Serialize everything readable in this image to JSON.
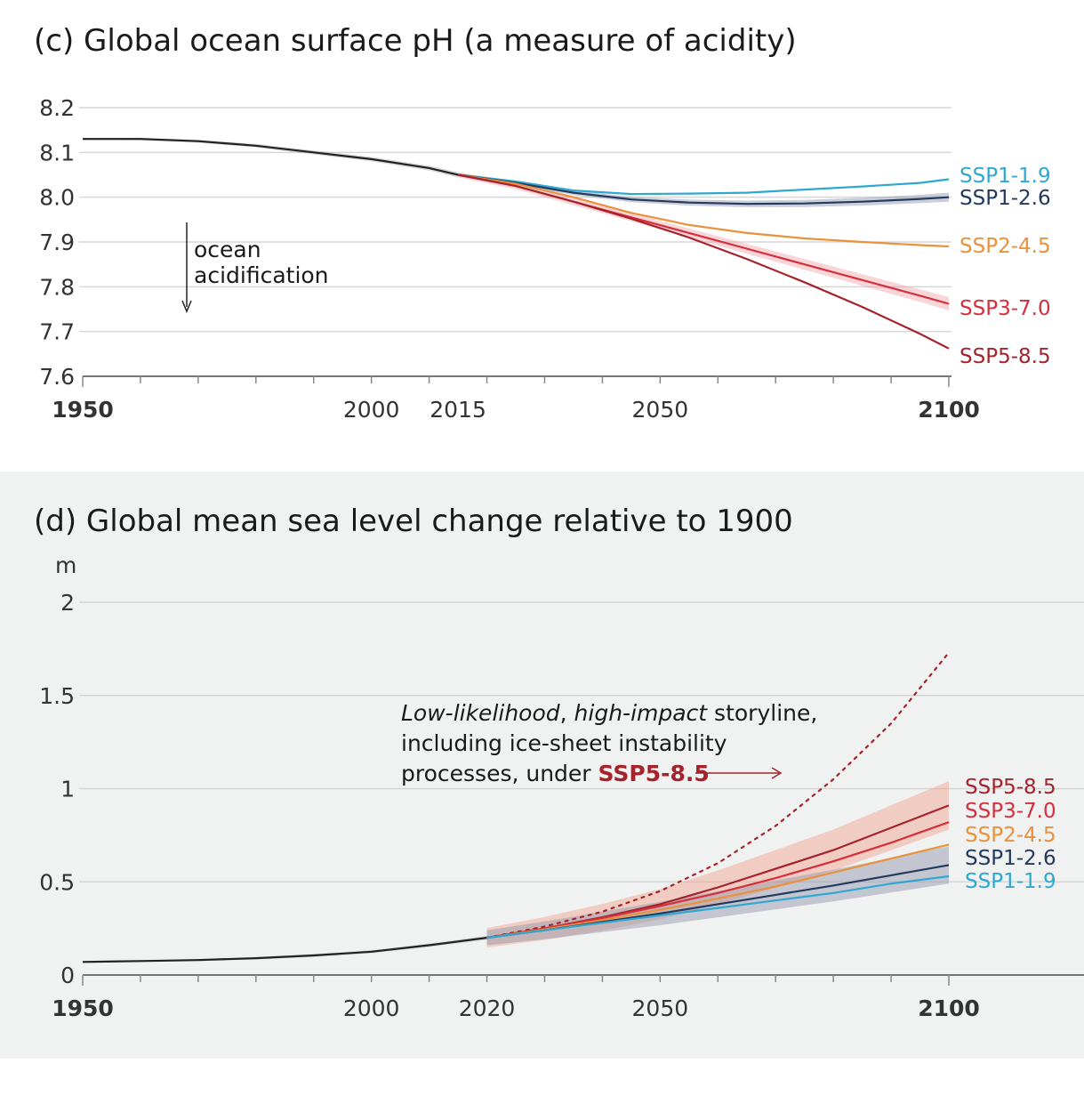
{
  "chart_data": [
    {
      "type": "line",
      "title": "(c) Global ocean surface pH (a measure of acidity)",
      "ylim": [
        7.6,
        8.2
      ],
      "yticks": [
        "8.2",
        "8.1",
        "8.0",
        "7.9",
        "7.8",
        "7.7",
        "7.6"
      ],
      "xlim": [
        1950,
        2100
      ],
      "xticks": [
        "1950",
        "2000",
        "2015",
        "2050",
        "2100"
      ],
      "grid": true,
      "annotation": {
        "line1": "ocean",
        "line2": "acidification"
      },
      "historical": {
        "name": "",
        "color": "#222222",
        "x": [
          1950,
          1960,
          1970,
          1980,
          1990,
          2000,
          2010,
          2015
        ],
        "y": [
          8.13,
          8.13,
          8.125,
          8.115,
          8.1,
          8.085,
          8.065,
          8.05
        ],
        "band": 0.006
      },
      "series": [
        {
          "name": "SSP1-1.9",
          "color": "#2fa8d1",
          "x": [
            2015,
            2025,
            2035,
            2045,
            2055,
            2065,
            2075,
            2085,
            2095,
            2100
          ],
          "y": [
            8.05,
            8.035,
            8.015,
            8.007,
            8.008,
            8.01,
            8.017,
            8.024,
            8.032,
            8.04
          ],
          "band": 0
        },
        {
          "name": "SSP1-2.6",
          "color": "#23395d",
          "x": [
            2015,
            2025,
            2035,
            2045,
            2055,
            2065,
            2075,
            2085,
            2095,
            2100
          ],
          "y": [
            8.05,
            8.032,
            8.01,
            7.995,
            7.988,
            7.985,
            7.986,
            7.99,
            7.996,
            8.0
          ],
          "band": 0.01
        },
        {
          "name": "SSP2-4.5",
          "color": "#e9913b",
          "x": [
            2015,
            2025,
            2035,
            2045,
            2055,
            2065,
            2075,
            2085,
            2095,
            2100
          ],
          "y": [
            8.05,
            8.03,
            8.0,
            7.965,
            7.938,
            7.92,
            7.908,
            7.9,
            7.893,
            7.89
          ],
          "band": 0
        },
        {
          "name": "SSP3-7.0",
          "color": "#d62f3c",
          "x": [
            2015,
            2025,
            2035,
            2045,
            2055,
            2065,
            2075,
            2085,
            2095,
            2100
          ],
          "y": [
            8.05,
            8.025,
            7.99,
            7.955,
            7.92,
            7.885,
            7.85,
            7.815,
            7.78,
            7.762
          ],
          "band": 0.015
        },
        {
          "name": "SSP5-8.5",
          "color": "#a4232c",
          "x": [
            2015,
            2025,
            2035,
            2045,
            2055,
            2065,
            2075,
            2085,
            2095,
            2100
          ],
          "y": [
            8.05,
            8.025,
            7.99,
            7.952,
            7.91,
            7.862,
            7.81,
            7.755,
            7.695,
            7.662
          ],
          "band": 0
        }
      ]
    },
    {
      "type": "line",
      "title": "(d) Global mean sea level change relative to 1900",
      "ylabel": "m",
      "ylim": [
        0,
        2
      ],
      "yticks": [
        "2",
        "1.5",
        "1",
        "0.5",
        "0"
      ],
      "xlim": [
        1950,
        2100
      ],
      "xticks": [
        "1950",
        "2000",
        "2020",
        "2050",
        "2100"
      ],
      "grid": true,
      "annotation": {
        "italic1": "Low-likelihood",
        "sep": ", ",
        "italic2": "high-impact",
        "rest1": " storyline,",
        "line2": "including ice-sheet instability",
        "line3": "processes, under ",
        "highlight": "SSP5-8.5"
      },
      "historical": {
        "name": "",
        "color": "#222222",
        "x": [
          1950,
          1960,
          1970,
          1980,
          1990,
          2000,
          2010,
          2020
        ],
        "y": [
          0.07,
          0.075,
          0.08,
          0.09,
          0.105,
          0.125,
          0.16,
          0.2
        ],
        "band": 0.01
      },
      "storyline": {
        "name": "Low-likelihood, high-impact storyline, including ice-sheet instability processes, under SSP5-8.5",
        "color": "#a4232c",
        "x": [
          2020,
          2030,
          2040,
          2050,
          2060,
          2070,
          2080,
          2090,
          2100
        ],
        "y": [
          0.2,
          0.26,
          0.34,
          0.45,
          0.6,
          0.8,
          1.05,
          1.35,
          1.73
        ]
      },
      "series": [
        {
          "name": "SSP5-8.5",
          "color": "#a4232c",
          "x": [
            2020,
            2030,
            2040,
            2050,
            2060,
            2070,
            2080,
            2090,
            2100
          ],
          "y": [
            0.2,
            0.25,
            0.31,
            0.38,
            0.47,
            0.57,
            0.67,
            0.79,
            0.91
          ],
          "band": 0.13
        },
        {
          "name": "SSP3-7.0",
          "color": "#d62f3c",
          "x": [
            2020,
            2030,
            2040,
            2050,
            2060,
            2070,
            2080,
            2090,
            2100
          ],
          "y": [
            0.2,
            0.25,
            0.305,
            0.37,
            0.44,
            0.52,
            0.61,
            0.71,
            0.82
          ],
          "band": 0
        },
        {
          "name": "SSP2-4.5",
          "color": "#e9913b",
          "x": [
            2020,
            2030,
            2040,
            2050,
            2060,
            2070,
            2080,
            2090,
            2100
          ],
          "y": [
            0.2,
            0.245,
            0.295,
            0.35,
            0.41,
            0.475,
            0.55,
            0.625,
            0.7
          ],
          "band": 0
        },
        {
          "name": "SSP1-2.6",
          "color": "#23395d",
          "x": [
            2020,
            2030,
            2040,
            2050,
            2060,
            2070,
            2080,
            2090,
            2100
          ],
          "y": [
            0.2,
            0.24,
            0.285,
            0.33,
            0.38,
            0.43,
            0.48,
            0.535,
            0.59
          ],
          "band": 0.1
        },
        {
          "name": "SSP1-1.9",
          "color": "#2fa8d1",
          "x": [
            2020,
            2030,
            2040,
            2050,
            2060,
            2070,
            2080,
            2090,
            2100
          ],
          "y": [
            0.2,
            0.24,
            0.28,
            0.32,
            0.36,
            0.4,
            0.44,
            0.49,
            0.53
          ],
          "band": 0
        }
      ]
    }
  ]
}
